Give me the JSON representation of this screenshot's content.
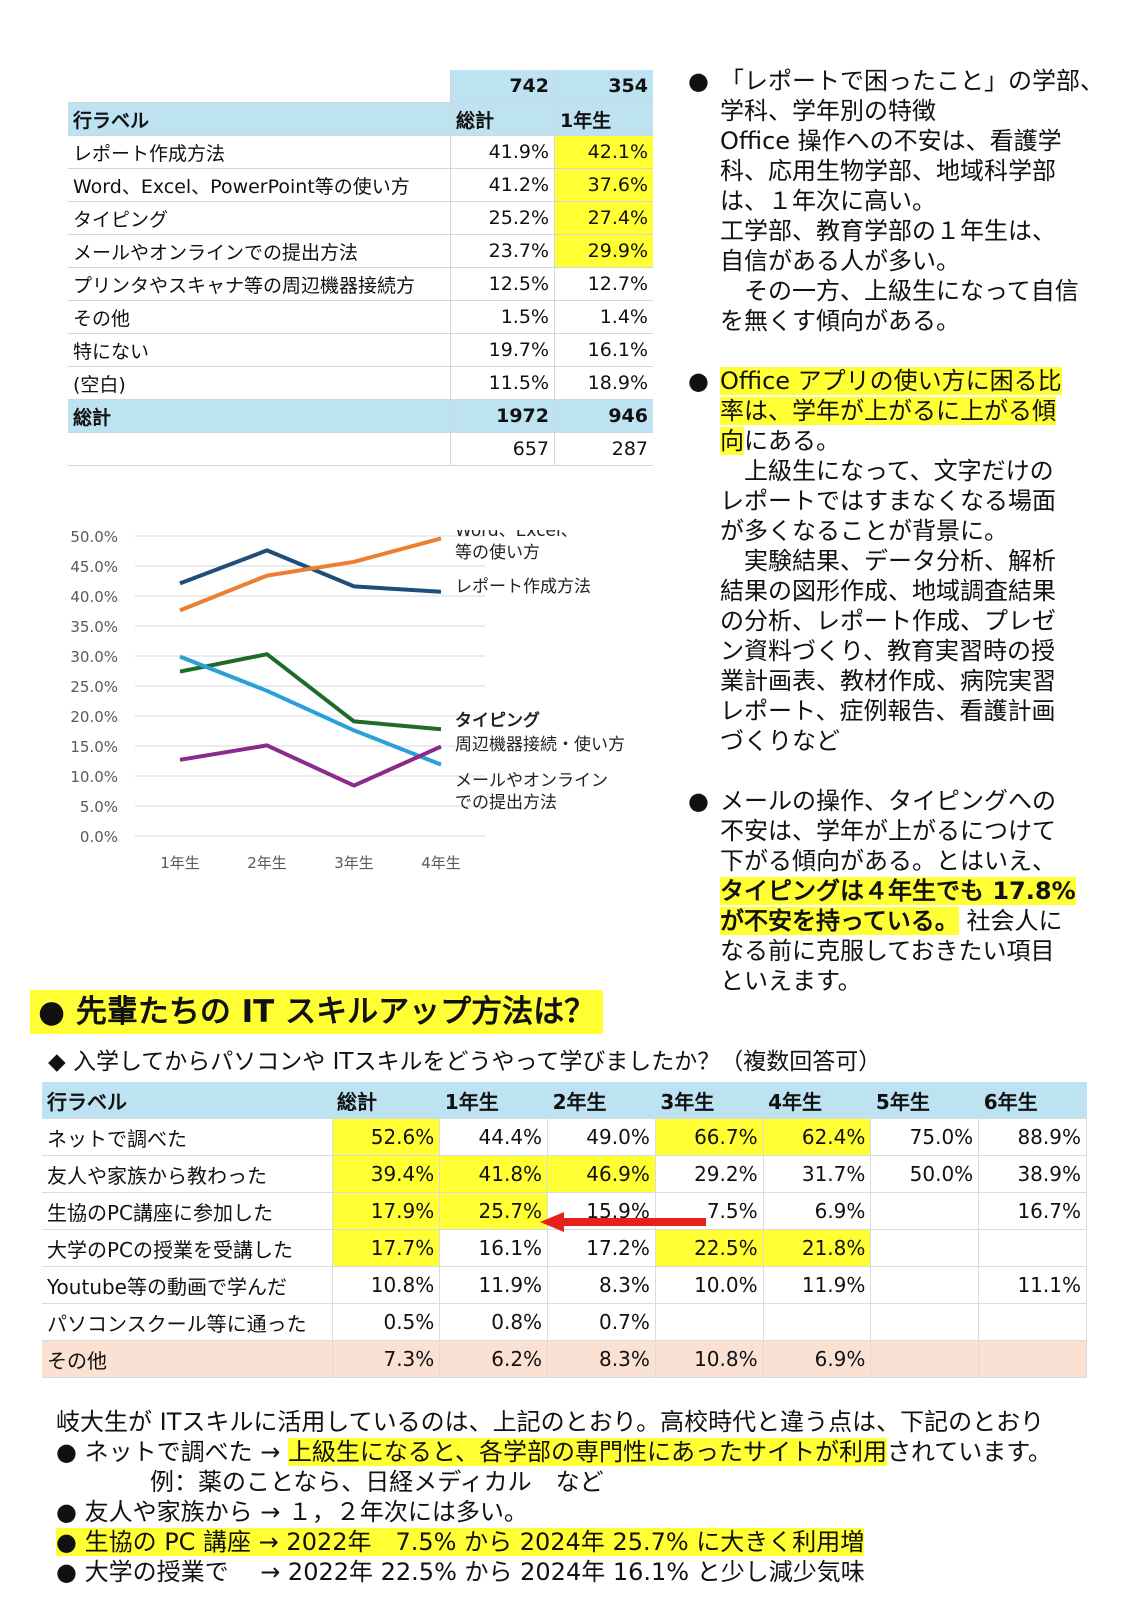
{
  "table1": {
    "top_total": "742",
    "top_y1": "354",
    "headers": [
      "行ラベル",
      "総計",
      "1年生"
    ],
    "rows": [
      {
        "label": "レポート作成方法",
        "total": "41.9%",
        "y1": "42.1%"
      },
      {
        "label": "Word、Excel、PowerPoint等の使い方",
        "total": "41.2%",
        "y1": "37.6%"
      },
      {
        "label": "タイピング",
        "total": "25.2%",
        "y1": "27.4%"
      },
      {
        "label": "メールやオンラインでの提出方法",
        "total": "23.7%",
        "y1": "29.9%"
      },
      {
        "label": "プリンタやスキャナ等の周辺機器接続方",
        "total": "12.5%",
        "y1": "12.7%"
      },
      {
        "label": "その他",
        "total": "1.5%",
        "y1": "1.4%"
      },
      {
        "label": "特にない",
        "total": "19.7%",
        "y1": "16.1%"
      },
      {
        "label": "(空白)",
        "total": "11.5%",
        "y1": "18.9%"
      }
    ],
    "sum_label": "総計",
    "sum_total": "1972",
    "sum_y1": "946",
    "bottom_total": "657",
    "bottom_y1": "287"
  },
  "notes": {
    "bullet": "●",
    "n1": [
      "「レポートで困ったこと」の学部、",
      "学科、学年別の特徴",
      "Office 操作への不安は、看護学",
      "科、応用生物学部、地域科学部",
      "は、１年次に高い。",
      "工学部、教育学部の１年生は、",
      "自信がある人が多い。",
      "　その一方、上級生になって自信",
      "を無くす傾向がある。"
    ],
    "n2_hl": [
      "Office アプリの使い方に困る比",
      "率は、学年が上がるに上がる傾",
      "向"
    ],
    "n2_rest": "にある。",
    "n2": [
      "　上級生になって、文字だけの",
      "レポートではすまなくなる場面",
      "が多くなることが背景に。",
      "　実験結果、データ分析、解析",
      "結果の図形作成、地域調査結果",
      "の分析、レポート作成、プレゼ",
      "ン資料づくり、教育実習時の授",
      "業計画表、教材作成、病院実習",
      "レポート、症例報告、看護計画",
      "づくりなど"
    ],
    "n3a": [
      "メールの操作、タイピングへの",
      "不安は、学年が上がるにつけて",
      "下がる傾向がある。とはいえ、"
    ],
    "n3_hl1": "タイピングは４年生でも 17.8%",
    "n3_hl2": "が不安を持っている。",
    "n3_after": " 社会人に",
    "n3b": [
      "なる前に克服しておきたい項目",
      "といえます。"
    ]
  },
  "chart_data": {
    "type": "line",
    "categories": [
      "1年生",
      "2年生",
      "3年生",
      "4年生"
    ],
    "ylim": [
      0,
      50
    ],
    "yticks": [
      "0.0%",
      "5.0%",
      "10.0%",
      "15.0%",
      "20.0%",
      "25.0%",
      "30.0%",
      "35.0%",
      "40.0%",
      "45.0%",
      "50.0%"
    ],
    "series": [
      {
        "values": [
          42.1,
          47.6,
          41.6,
          40.7
        ],
        "color": "#1f4e79"
      },
      {
        "values": [
          37.6,
          43.4,
          45.7,
          49.6
        ],
        "color": "#ed7d31"
      },
      {
        "values": [
          27.4,
          30.3,
          19.1,
          17.8
        ],
        "color": "#1e6b2a"
      },
      {
        "values": [
          29.9,
          24.2,
          17.6,
          11.9
        ],
        "color": "#2a9fd8"
      },
      {
        "values": [
          12.7,
          15.1,
          8.4,
          14.9
        ],
        "color": "#8b2a8b"
      }
    ],
    "annotations": {
      "word1": "Word、Excel、",
      "word2": "等の使い方",
      "report": "レポート作成方法",
      "typing": "タイピング",
      "printer": "周辺機器接続・使い方",
      "mail1": "メールやオンライン",
      "mail2": "での提出方法"
    }
  },
  "section": {
    "title": "● 先輩たちの IT スキルアップ方法は？",
    "question": "◆ 入学してからパソコンや ITスキルをどうやって学びましたか？（複数回答可）"
  },
  "table2": {
    "headers": [
      "行ラベル",
      "総計",
      "1年生",
      "2年生",
      "3年生",
      "4年生",
      "5年生",
      "6年生"
    ],
    "rows": [
      {
        "cells": [
          "ネットで調べた",
          "52.6%",
          "44.4%",
          "49.0%",
          "66.7%",
          "62.4%",
          "75.0%",
          "88.9%"
        ]
      },
      {
        "cells": [
          "友人や家族から教わった",
          "39.4%",
          "41.8%",
          "46.9%",
          "29.2%",
          "31.7%",
          "50.0%",
          "38.9%"
        ]
      },
      {
        "cells": [
          "生協のPC講座に参加した",
          "17.9%",
          "25.7%",
          "15.9%",
          "7.5%",
          "6.9%",
          "",
          "16.7%"
        ]
      },
      {
        "cells": [
          "大学のPCの授業を受講した",
          "17.7%",
          "16.1%",
          "17.2%",
          "22.5%",
          "21.8%",
          "",
          ""
        ]
      },
      {
        "cells": [
          "Youtube等の動画で学んだ",
          "10.8%",
          "11.9%",
          "8.3%",
          "10.0%",
          "11.9%",
          "",
          "11.1%"
        ]
      },
      {
        "cells": [
          "パソコンスクール等に通った",
          "0.5%",
          "0.8%",
          "0.7%",
          "",
          "",
          "",
          ""
        ]
      },
      {
        "cells": [
          "その他",
          "7.3%",
          "6.2%",
          "8.3%",
          "10.8%",
          "6.9%",
          "",
          ""
        ]
      }
    ]
  },
  "bottom": {
    "l1": "岐大生が ITスキルに活用しているのは、上記のとおり。高校時代と違う点は、下記のとおり",
    "l2a": "● ネットで調べた → ",
    "l2hl": "上級生になると、各学部の専門性にあったサイトが利用",
    "l2b": "されています。",
    "l3": "例：薬のことなら、日経メディカル　など",
    "l4": "● 友人や家族から → １，２年次には多い。",
    "l5": "● 生協の PC 講座 → 2022年　7.5% から 2024年 25.7% に大きく利用増",
    "l6": "● 大学の授業で　 → 2022年 22.5% から 2024年 16.1% と少し減少気味"
  }
}
